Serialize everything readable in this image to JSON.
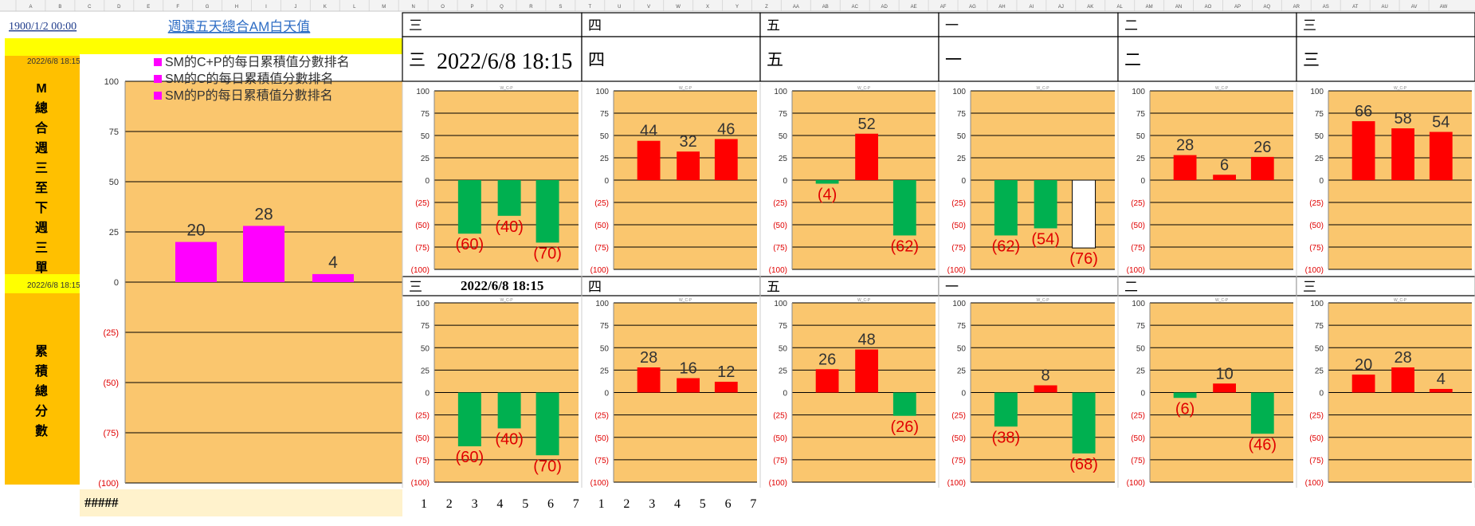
{
  "sheet": {
    "column_letters": [
      "A",
      "B",
      "C",
      "D",
      "E",
      "F",
      "G",
      "H",
      "I",
      "J",
      "K",
      "L",
      "M",
      "N",
      "O",
      "P",
      "Q",
      "R",
      "S",
      "T",
      "U",
      "V",
      "W",
      "X",
      "Y",
      "Z",
      "AA",
      "AB",
      "AC",
      "AD",
      "AE",
      "AF",
      "AG",
      "AH",
      "AI",
      "AJ",
      "AK",
      "AL",
      "AM",
      "AN",
      "AO",
      "AP",
      "AQ",
      "AR",
      "AS",
      "AT",
      "AU",
      "AV",
      "AW"
    ],
    "top_left_date": "1900/1/2 00:00",
    "title_link": "週選五天總合AM白天值",
    "timestamp_small": "2022/6/8 18:15",
    "timestamp_big": "2022/6/8 18:15",
    "vertical_label_top": "M總合週三至下週三單",
    "vertical_label_bottom": "累積總分數",
    "hash_cell": "#####",
    "day_numbers": [
      "1",
      "2",
      "3",
      "4",
      "5",
      "6",
      "7",
      "1",
      "2",
      "3",
      "4",
      "5",
      "6",
      "7"
    ],
    "weekday_headers_row1": [
      "三",
      "四",
      "五",
      "一",
      "二",
      "三"
    ],
    "weekday_headers_row2": [
      "三",
      "四",
      "五",
      "一",
      "二",
      "三"
    ],
    "weekday_headers_row3": [
      "三",
      "四",
      "五",
      "一",
      "二",
      "三"
    ]
  },
  "colors": {
    "orange_bg": "#FAC66E",
    "yellow": "#FFFF00",
    "gold": "#FFC000",
    "magenta": "#FF00FF",
    "red": "#FF0000",
    "green": "#00B050",
    "neg_label": "#E00000"
  },
  "chart_data": [
    {
      "id": "main",
      "type": "bar",
      "legend": [
        "SM的C+P的每日累積值分數排名",
        "SM的C的每日累積值分數排名",
        "SM的P的每日累積值分數排名"
      ],
      "ylim": [
        -100,
        100
      ],
      "yticks": [
        "100",
        "75",
        "50",
        "25",
        "0",
        "(25)",
        "(50)",
        "(75)",
        "(100)"
      ],
      "values": [
        20,
        28,
        4
      ],
      "labels": [
        "20",
        "28",
        "4"
      ]
    },
    {
      "id": "top-1",
      "type": "bar",
      "title": "W_C-P",
      "ylim": [
        -100,
        100
      ],
      "values": [
        -60,
        -40,
        -70
      ],
      "labels": [
        "(60)",
        "(40)",
        "(70)"
      ]
    },
    {
      "id": "top-2",
      "type": "bar",
      "title": "W_C-P",
      "ylim": [
        -100,
        100
      ],
      "values": [
        44,
        32,
        46
      ],
      "labels": [
        "44",
        "32",
        "46"
      ]
    },
    {
      "id": "top-3",
      "type": "bar",
      "title": "W_C-P",
      "ylim": [
        -100,
        100
      ],
      "values": [
        -4,
        52,
        -62
      ],
      "labels": [
        "(4)",
        "52",
        "(62)"
      ]
    },
    {
      "id": "top-4",
      "type": "bar",
      "title": "W_C-P",
      "ylim": [
        -100,
        100
      ],
      "values": [
        -62,
        -54,
        -76
      ],
      "labels": [
        "(62)",
        "(54)",
        "(76)"
      ],
      "hollow_index": 2
    },
    {
      "id": "top-5",
      "type": "bar",
      "title": "W_C-P",
      "ylim": [
        -100,
        100
      ],
      "values": [
        28,
        6,
        26
      ],
      "labels": [
        "28",
        "6",
        "26"
      ]
    },
    {
      "id": "top-6",
      "type": "bar",
      "title": "W_C-P",
      "ylim": [
        -100,
        100
      ],
      "values": [
        66,
        58,
        54
      ],
      "labels": [
        "66",
        "58",
        "54"
      ]
    },
    {
      "id": "bot-1",
      "type": "bar",
      "title": "W_C-P",
      "ylim": [
        -100,
        100
      ],
      "values": [
        -60,
        -40,
        -70
      ],
      "labels": [
        "(60)",
        "(40)",
        "(70)"
      ]
    },
    {
      "id": "bot-2",
      "type": "bar",
      "title": "W_C-P",
      "ylim": [
        -100,
        100
      ],
      "values": [
        28,
        16,
        12
      ],
      "labels": [
        "28",
        "16",
        "12"
      ]
    },
    {
      "id": "bot-3",
      "type": "bar",
      "title": "W_C-P",
      "ylim": [
        -100,
        100
      ],
      "values": [
        26,
        48,
        -26
      ],
      "labels": [
        "26",
        "48",
        "(26)"
      ]
    },
    {
      "id": "bot-4",
      "type": "bar",
      "title": "W_C-P",
      "ylim": [
        -100,
        100
      ],
      "values": [
        -38,
        8,
        -68
      ],
      "labels": [
        "(38)",
        "8",
        "(68)"
      ]
    },
    {
      "id": "bot-5",
      "type": "bar",
      "title": "W_C-P",
      "ylim": [
        -100,
        100
      ],
      "values": [
        -6,
        10,
        -46
      ],
      "labels": [
        "(6)",
        "10",
        "(46)"
      ]
    },
    {
      "id": "bot-6",
      "type": "bar",
      "title": "W_C-P",
      "ylim": [
        -100,
        100
      ],
      "values": [
        20,
        28,
        4
      ],
      "labels": [
        "20",
        "28",
        "4"
      ]
    }
  ]
}
